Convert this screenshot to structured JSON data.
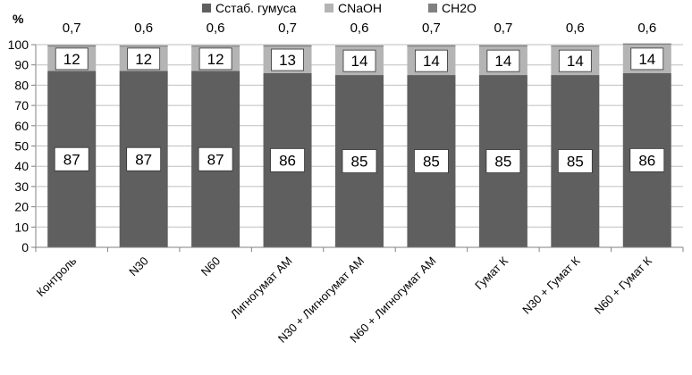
{
  "chart_data": {
    "type": "bar",
    "stacked": true,
    "unit_label": "%",
    "ylim": [
      0,
      100
    ],
    "yticks": [
      0,
      10,
      20,
      30,
      40,
      50,
      60,
      70,
      80,
      90,
      100
    ],
    "categories": [
      "Контроль",
      "N30",
      "N60",
      "Лигногумат АМ",
      "N30 + Лигногумат АМ",
      "N60 + Лигногумат АМ",
      "Гумат К",
      "N30 + Гумат К",
      "N60 + Гумат К"
    ],
    "series": [
      {
        "name": "Сстаб. гумуса",
        "color": "#5f5f5f",
        "values": [
          87,
          87,
          87,
          86,
          85,
          85,
          85,
          85,
          86
        ],
        "labels": [
          "87",
          "87",
          "87",
          "86",
          "85",
          "85",
          "85",
          "85",
          "86"
        ]
      },
      {
        "name": "CNaOH",
        "color": "#b4b4b4",
        "values": [
          12,
          12,
          12,
          13,
          14,
          14,
          14,
          14,
          14
        ],
        "labels": [
          "12",
          "12",
          "12",
          "13",
          "14",
          "14",
          "14",
          "14",
          "14"
        ]
      },
      {
        "name": "CH2O",
        "color": "#808080",
        "values": [
          0.7,
          0.6,
          0.6,
          0.7,
          0.6,
          0.7,
          0.7,
          0.6,
          0.6
        ],
        "labels": [
          "0,7",
          "0,6",
          "0,6",
          "0,7",
          "0,6",
          "0,7",
          "0,7",
          "0,6",
          "0,6"
        ]
      }
    ],
    "legend_position": "top"
  }
}
